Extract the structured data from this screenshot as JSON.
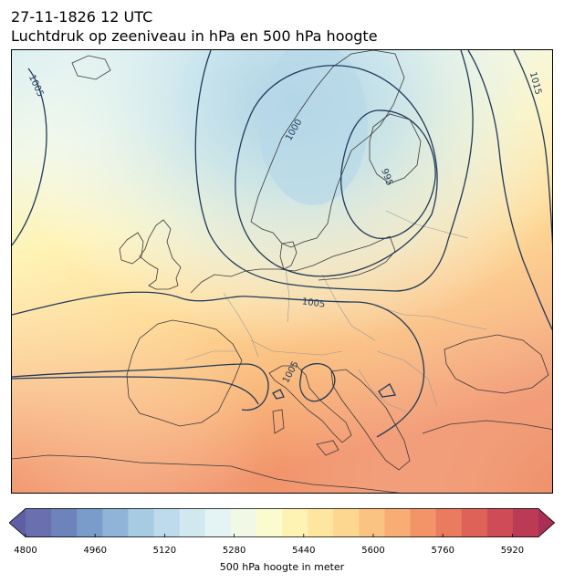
{
  "title": {
    "line1": "27-11-1826 12 UTC",
    "line2": "Luchtdruk op zeeniveau in hPa en 500 hPa hoogte"
  },
  "isobar_labels": [
    "1005",
    "1000",
    "995",
    "1005",
    "1005",
    "1015"
  ],
  "colorbar": {
    "label": "500 hPa hoogte in meter",
    "ticks": [
      "4800",
      "4960",
      "5120",
      "5280",
      "5440",
      "5600",
      "5760",
      "5920"
    ],
    "range": [
      4800,
      5980
    ],
    "colors": [
      "#6a6fb0",
      "#6c83bc",
      "#7a9cca",
      "#8fb4d7",
      "#a7cbe2",
      "#bddbea",
      "#d2e8f0",
      "#e4f3f3",
      "#f1f8e6",
      "#fbfbd0",
      "#fff3b3",
      "#fee6a0",
      "#fdd690",
      "#fbc382",
      "#f7ad74",
      "#f29468",
      "#ea7b5f",
      "#df6258",
      "#cf4b55",
      "#bb3a56"
    ]
  },
  "colors": {
    "isobar": "#1f3a5a",
    "coastline": "#3a3a3a",
    "border": "#9a9a9a"
  }
}
